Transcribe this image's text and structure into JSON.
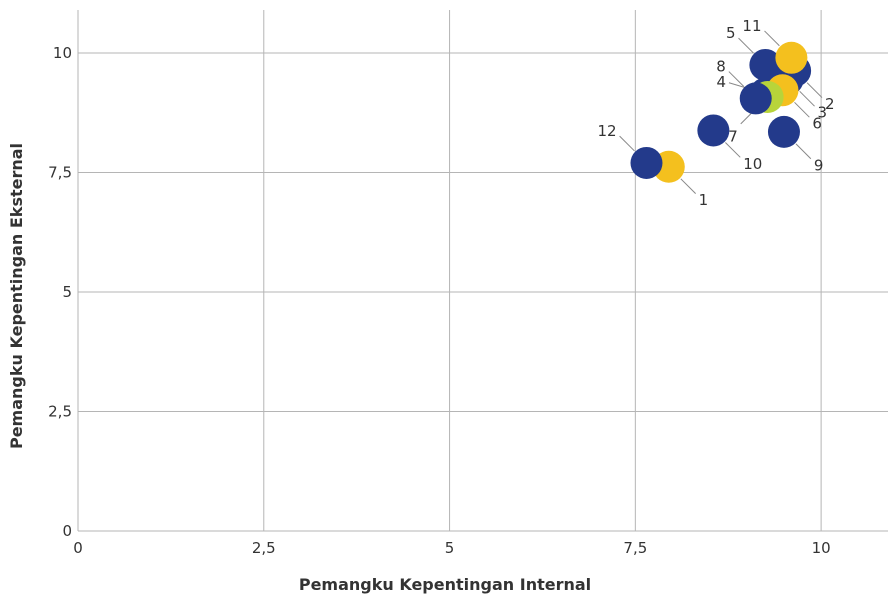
{
  "chart_data": {
    "type": "scatter",
    "xlabel": "Pemangku Kepentingan Internal",
    "ylabel": "Pemangku Kepentingan Eksternal",
    "xlim": [
      0,
      10.9
    ],
    "ylim": [
      0,
      10.9
    ],
    "x_ticks": [
      0,
      2.5,
      5,
      7.5,
      10
    ],
    "y_ticks": [
      0,
      2.5,
      5,
      7.5,
      10
    ],
    "x_tick_labels": [
      "0",
      "2,5",
      "5",
      "7,5",
      "10"
    ],
    "y_tick_labels": [
      "0",
      "2,5",
      "5",
      "7,5",
      "10"
    ],
    "grid": true,
    "colors": {
      "navy": "#233a8b",
      "yellow": "#f4c01e",
      "lime": "#b8d43a"
    },
    "points": [
      {
        "label": "1",
        "x": 7.95,
        "y": 7.62,
        "color": "yellow",
        "dir": "se"
      },
      {
        "label": "2",
        "x": 9.65,
        "y": 9.63,
        "color": "navy",
        "dir": "se"
      },
      {
        "label": "3",
        "x": 9.55,
        "y": 9.45,
        "color": "navy",
        "dir": "se"
      },
      {
        "label": "4",
        "x": 9.25,
        "y": 9.15,
        "color": "navy",
        "dir": "w"
      },
      {
        "label": "5",
        "x": 9.25,
        "y": 9.75,
        "color": "navy",
        "dir": "nw"
      },
      {
        "label": "6",
        "x": 9.48,
        "y": 9.22,
        "color": "yellow",
        "dir": "se"
      },
      {
        "label": "7",
        "x": 9.28,
        "y": 9.08,
        "color": "lime",
        "dir": "sw"
      },
      {
        "label": "8",
        "x": 9.12,
        "y": 9.05,
        "color": "navy",
        "dir": "nw"
      },
      {
        "label": "9",
        "x": 9.5,
        "y": 8.35,
        "color": "navy",
        "dir": "se"
      },
      {
        "label": "10",
        "x": 8.55,
        "y": 8.38,
        "color": "navy",
        "dir": "se"
      },
      {
        "label": "11",
        "x": 9.6,
        "y": 9.9,
        "color": "yellow",
        "dir": "nw"
      },
      {
        "label": "12",
        "x": 7.65,
        "y": 7.7,
        "color": "navy",
        "dir": "nw"
      }
    ]
  }
}
